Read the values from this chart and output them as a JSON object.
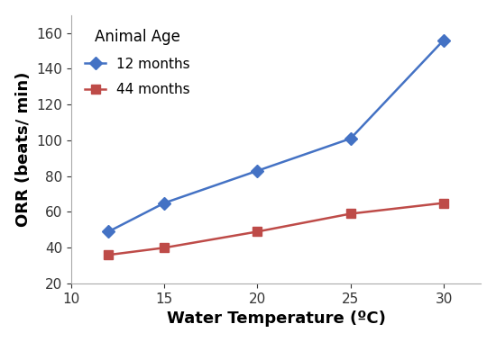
{
  "x": [
    12,
    15,
    20,
    25,
    30
  ],
  "y_12months": [
    49,
    65,
    83,
    101,
    156
  ],
  "y_44months": [
    36,
    40,
    49,
    59,
    65
  ],
  "line_color_12": "#4472C4",
  "line_color_44": "#BE4B48",
  "marker_12": "D",
  "marker_44": "s",
  "legend_title": "Animal Age",
  "label_12": "12 months",
  "label_44": "44 months",
  "xlabel": "Water Temperature (ºC)",
  "ylabel": "ORR (beats/ min)",
  "xlim": [
    10,
    32
  ],
  "ylim": [
    20,
    170
  ],
  "xticks": [
    10,
    15,
    20,
    25,
    30
  ],
  "yticks": [
    20,
    40,
    60,
    80,
    100,
    120,
    140,
    160
  ],
  "title_fontsize": 12,
  "label_fontsize": 13,
  "tick_fontsize": 11,
  "legend_fontsize": 11,
  "linewidth": 1.8,
  "markersize": 7,
  "background_color": "#FFFFFF",
  "spine_color": "#AAAAAA"
}
